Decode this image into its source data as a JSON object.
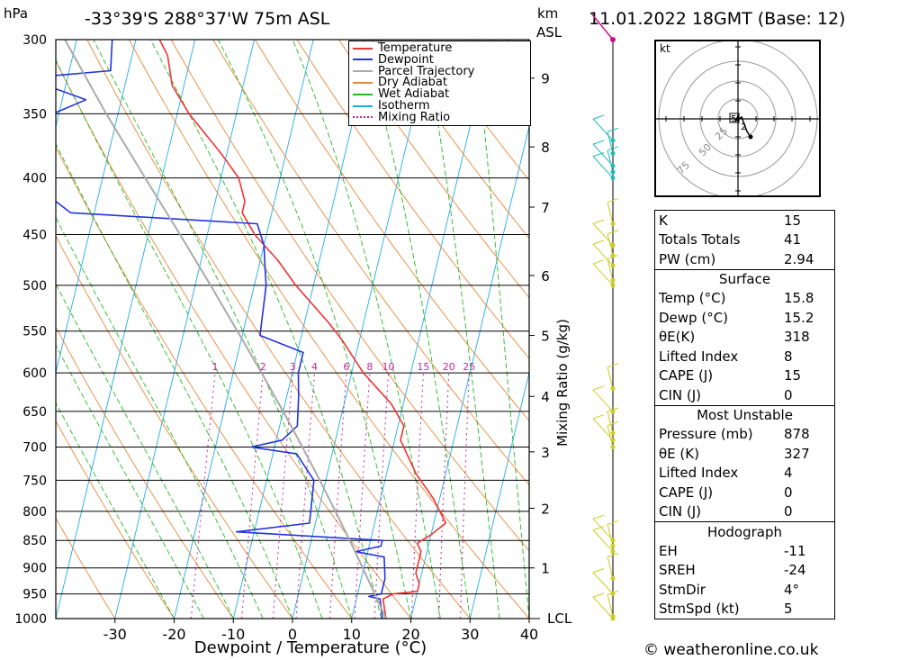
{
  "header": {
    "pressure_unit": "hPa",
    "location": "-33°39'S  288°37'W  75m  ASL",
    "km_label": "km",
    "asl_label": "ASL",
    "datetime": "11.01.2022  18GMT  (Base: 12)"
  },
  "colors": {
    "temperature": "#ee3333",
    "dewpoint": "#2233dd",
    "parcel": "#aaaaaa",
    "dry_adiabat": "#e8883a",
    "wet_adiabat": "#22bb22",
    "isotherm": "#22aaee",
    "mixing_ratio": "#cc2299",
    "wind_upper": "#22bbbb",
    "wind_lower": "#cccc22"
  },
  "chart_data": {
    "type": "line",
    "title": "",
    "xlabel": "Dewpoint / Temperature (°C)",
    "ylabel": "hPa",
    "x_ticks": [
      -30,
      -20,
      -10,
      0,
      10,
      20,
      30,
      40
    ],
    "x_range": [
      -40,
      40
    ],
    "pressure_levels": [
      300,
      350,
      400,
      450,
      500,
      550,
      600,
      650,
      700,
      750,
      800,
      850,
      900,
      950,
      1000
    ],
    "p_range": [
      300,
      1000
    ],
    "skew_deg_per_decade": 45,
    "km_ticks": [
      {
        "label": "1",
        "p": 900
      },
      {
        "label": "2",
        "p": 795
      },
      {
        "label": "3",
        "p": 707
      },
      {
        "label": "4",
        "p": 630
      },
      {
        "label": "5",
        "p": 555
      },
      {
        "label": "6",
        "p": 490
      },
      {
        "label": "7",
        "p": 425
      },
      {
        "label": "8",
        "p": 375
      },
      {
        "label": "9",
        "p": 325
      }
    ],
    "lcl_label": "LCL",
    "lcl_p": 1000,
    "mixing_ratio_axis_label": "Mixing Ratio (g/kg)",
    "mixing_ratio_values": [
      1,
      2,
      3,
      4,
      6,
      8,
      10,
      15,
      20,
      25
    ],
    "legend": [
      "Temperature",
      "Dewpoint",
      "Parcel Trajectory",
      "Dry Adiabat",
      "Wet Adiabat",
      "Isotherm",
      "Mixing Ratio"
    ],
    "series": [
      {
        "name": "Temperature",
        "points": [
          [
            1000,
            15.8
          ],
          [
            960,
            14.5
          ],
          [
            950,
            16
          ],
          [
            945,
            20
          ],
          [
            930,
            20
          ],
          [
            910,
            19
          ],
          [
            880,
            19
          ],
          [
            870,
            19
          ],
          [
            855,
            18
          ],
          [
            840,
            20
          ],
          [
            820,
            22
          ],
          [
            780,
            19
          ],
          [
            740,
            15
          ],
          [
            690,
            11
          ],
          [
            670,
            11
          ],
          [
            640,
            8
          ],
          [
            600,
            2
          ],
          [
            560,
            -3
          ],
          [
            540,
            -6
          ],
          [
            500,
            -13
          ],
          [
            475,
            -17
          ],
          [
            450,
            -22
          ],
          [
            430,
            -25
          ],
          [
            420,
            -25
          ],
          [
            400,
            -27
          ],
          [
            380,
            -31
          ],
          [
            350,
            -38
          ],
          [
            330,
            -42
          ],
          [
            310,
            -44
          ],
          [
            300,
            -46
          ]
        ]
      },
      {
        "name": "Dewpoint",
        "points": [
          [
            1000,
            15.2
          ],
          [
            960,
            14
          ],
          [
            955,
            12
          ],
          [
            950,
            14
          ],
          [
            920,
            14
          ],
          [
            880,
            13
          ],
          [
            870,
            8
          ],
          [
            860,
            12
          ],
          [
            850,
            12
          ],
          [
            835,
            -13
          ],
          [
            820,
            -1
          ],
          [
            750,
            -2
          ],
          [
            710,
            -6
          ],
          [
            700,
            -14
          ],
          [
            690,
            -9
          ],
          [
            670,
            -7
          ],
          [
            630,
            -8
          ],
          [
            600,
            -9
          ],
          [
            575,
            -9
          ],
          [
            555,
            -17
          ],
          [
            500,
            -18
          ],
          [
            480,
            -19
          ],
          [
            460,
            -20
          ],
          [
            440,
            -22
          ],
          [
            430,
            -54
          ],
          [
            400,
            -63
          ],
          [
            350,
            -61
          ],
          [
            340,
            -56
          ],
          [
            325,
            -67
          ],
          [
            320,
            -53
          ],
          [
            300,
            -54
          ]
        ]
      },
      {
        "name": "Parcel Trajectory",
        "points": [
          [
            1000,
            15.8
          ],
          [
            950,
            12.9
          ],
          [
            900,
            9.8
          ],
          [
            850,
            6.5
          ],
          [
            800,
            2.9
          ],
          [
            750,
            -1
          ],
          [
            700,
            -5.3
          ],
          [
            650,
            -10
          ],
          [
            600,
            -15.2
          ],
          [
            550,
            -21
          ],
          [
            500,
            -27.4
          ],
          [
            450,
            -34.6
          ],
          [
            400,
            -42.8
          ],
          [
            350,
            -52
          ],
          [
            300,
            -62
          ]
        ]
      }
    ],
    "winds": [
      {
        "p": 1000,
        "color": "lower"
      },
      {
        "p": 995,
        "color": "lower"
      },
      {
        "p": 950,
        "color": "lower"
      },
      {
        "p": 920,
        "color": "lower"
      },
      {
        "p": 870,
        "color": "lower"
      },
      {
        "p": 860,
        "color": "lower"
      },
      {
        "p": 850,
        "color": "lower"
      },
      {
        "p": 700,
        "color": "lower"
      },
      {
        "p": 690,
        "color": "lower"
      },
      {
        "p": 680,
        "color": "lower"
      },
      {
        "p": 650,
        "color": "lower"
      },
      {
        "p": 620,
        "color": "lower"
      },
      {
        "p": 500,
        "color": "lower"
      },
      {
        "p": 495,
        "color": "lower"
      },
      {
        "p": 480,
        "color": "lower"
      },
      {
        "p": 470,
        "color": "lower"
      },
      {
        "p": 460,
        "color": "lower"
      },
      {
        "p": 440,
        "color": "lower"
      },
      {
        "p": 400,
        "color": "upper"
      },
      {
        "p": 395,
        "color": "upper"
      },
      {
        "p": 390,
        "color": "upper"
      },
      {
        "p": 380,
        "color": "upper"
      },
      {
        "p": 370,
        "color": "upper"
      }
    ]
  },
  "hodograph": {
    "unit": "kt",
    "ring_labels": [
      "25",
      "50",
      "75"
    ],
    "marker_labels": [
      "2",
      "5"
    ]
  },
  "indices": [
    {
      "label": "K",
      "value": "15"
    },
    {
      "label": "Totals Totals",
      "value": "41"
    },
    {
      "label": "PW (cm)",
      "value": "2.94"
    }
  ],
  "surface": {
    "title": "Surface",
    "rows": [
      {
        "label": "Temp (°C)",
        "value": "15.8"
      },
      {
        "label": "Dewp (°C)",
        "value": "15.2"
      },
      {
        "label": "θE(K)",
        "value": "318"
      },
      {
        "label": "Lifted Index",
        "value": "8"
      },
      {
        "label": "CAPE (J)",
        "value": "15"
      },
      {
        "label": "CIN (J)",
        "value": "0"
      }
    ]
  },
  "most_unstable": {
    "title": "Most Unstable",
    "rows": [
      {
        "label": "Pressure (mb)",
        "value": "878"
      },
      {
        "label": "θE (K)",
        "value": "327"
      },
      {
        "label": "Lifted Index",
        "value": "4"
      },
      {
        "label": "CAPE (J)",
        "value": "0"
      },
      {
        "label": "CIN (J)",
        "value": "0"
      }
    ]
  },
  "hodograph_table": {
    "title": "Hodograph",
    "rows": [
      {
        "label": "EH",
        "value": "-11"
      },
      {
        "label": "SREH",
        "value": "-24"
      },
      {
        "label": "StmDir",
        "value": "4°"
      },
      {
        "label": "StmSpd (kt)",
        "value": "5"
      }
    ]
  },
  "footer": {
    "copyright": "© weatheronline.co.uk"
  }
}
